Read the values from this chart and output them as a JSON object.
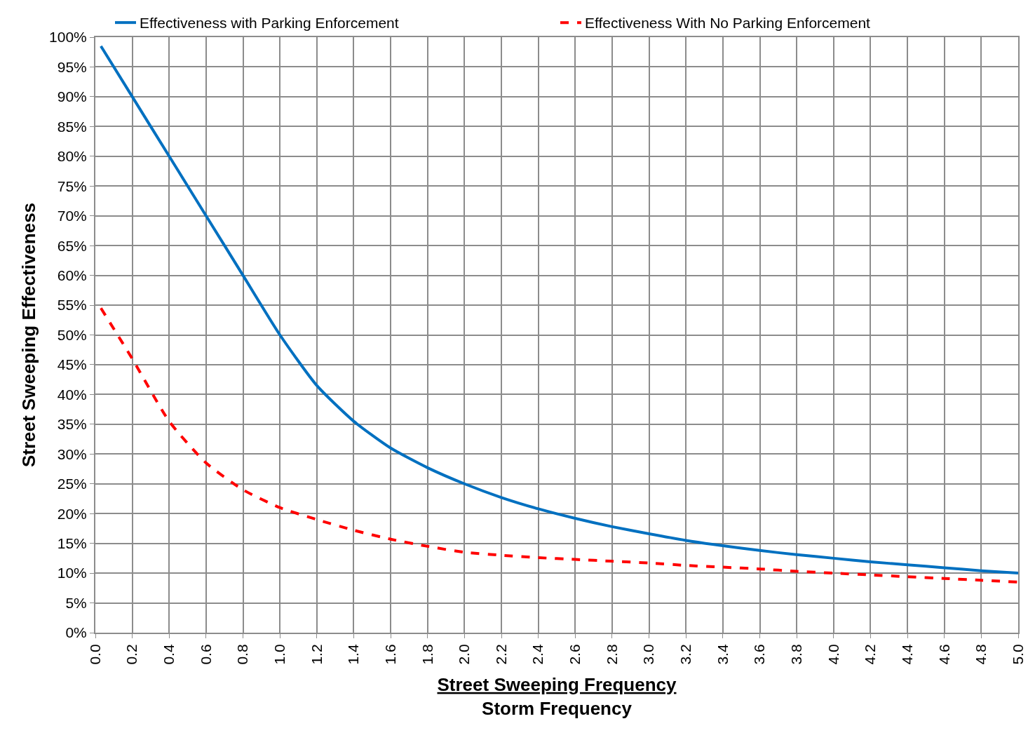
{
  "chart_data": {
    "type": "line",
    "xlabel": "Street Sweeping Frequency\nStorm Frequency",
    "ylabel": "Street Sweeping Effectiveness",
    "x": [
      0.03,
      0.2,
      0.4,
      0.6,
      0.8,
      1.0,
      1.2,
      1.4,
      1.6,
      1.8,
      2.0,
      2.2,
      2.4,
      2.6,
      2.8,
      3.0,
      3.2,
      3.4,
      3.6,
      3.8,
      4.0,
      4.2,
      4.4,
      4.6,
      4.8,
      5.0
    ],
    "series": [
      {
        "name": "Effectiveness with Parking Enforcement",
        "color": "#0070c0",
        "line_style": "solid",
        "values": [
          98.5,
          90,
          80,
          70,
          60,
          50,
          41.5,
          35.5,
          31,
          27.7,
          25,
          22.7,
          20.8,
          19.2,
          17.8,
          16.6,
          15.5,
          14.6,
          13.8,
          13.1,
          12.5,
          11.9,
          11.4,
          10.9,
          10.4,
          10
        ]
      },
      {
        "name": "Effectiveness With No Parking Enforcement",
        "color": "#ff0000",
        "line_style": "dashed",
        "values": [
          54.5,
          46,
          35.5,
          28.5,
          24,
          21,
          19,
          17.2,
          15.7,
          14.5,
          13.5,
          13,
          12.6,
          12.3,
          12,
          11.7,
          11.3,
          11,
          10.7,
          10.3,
          10,
          9.7,
          9.4,
          9.1,
          8.8,
          8.5
        ]
      }
    ],
    "xlim": [
      0,
      5
    ],
    "xticks": [
      {
        "value": 0,
        "label": "0.0"
      },
      {
        "value": 0.2,
        "label": "0.2"
      },
      {
        "value": 0.4,
        "label": "0.4"
      },
      {
        "value": 0.6,
        "label": "0.6"
      },
      {
        "value": 0.8,
        "label": "0.8"
      },
      {
        "value": 1,
        "label": "1.0"
      },
      {
        "value": 1.2,
        "label": "1.2"
      },
      {
        "value": 1.4,
        "label": "1.4"
      },
      {
        "value": 1.6,
        "label": "1.6"
      },
      {
        "value": 1.8,
        "label": "1.8"
      },
      {
        "value": 2,
        "label": "2.0"
      },
      {
        "value": 2.2,
        "label": "2.2"
      },
      {
        "value": 2.4,
        "label": "2.4"
      },
      {
        "value": 2.6,
        "label": "2.6"
      },
      {
        "value": 2.8,
        "label": "2.8"
      },
      {
        "value": 3,
        "label": "3.0"
      },
      {
        "value": 3.2,
        "label": "3.2"
      },
      {
        "value": 3.4,
        "label": "3.4"
      },
      {
        "value": 3.6,
        "label": "3.6"
      },
      {
        "value": 3.8,
        "label": "3.8"
      },
      {
        "value": 4,
        "label": "4.0"
      },
      {
        "value": 4.2,
        "label": "4.2"
      },
      {
        "value": 4.4,
        "label": "4.4"
      },
      {
        "value": 4.6,
        "label": "4.6"
      },
      {
        "value": 4.8,
        "label": "4.8"
      },
      {
        "value": 5,
        "label": "5.0"
      }
    ],
    "ylim": [
      0,
      100
    ],
    "yticks": [
      {
        "value": 0,
        "label": "0%"
      },
      {
        "value": 5,
        "label": "5%"
      },
      {
        "value": 10,
        "label": "10%"
      },
      {
        "value": 15,
        "label": "15%"
      },
      {
        "value": 20,
        "label": "20%"
      },
      {
        "value": 25,
        "label": "25%"
      },
      {
        "value": 30,
        "label": "30%"
      },
      {
        "value": 35,
        "label": "35%"
      },
      {
        "value": 40,
        "label": "40%"
      },
      {
        "value": 45,
        "label": "45%"
      },
      {
        "value": 50,
        "label": "50%"
      },
      {
        "value": 55,
        "label": "55%"
      },
      {
        "value": 60,
        "label": "60%"
      },
      {
        "value": 65,
        "label": "65%"
      },
      {
        "value": 70,
        "label": "70%"
      },
      {
        "value": 75,
        "label": "75%"
      },
      {
        "value": 80,
        "label": "80%"
      },
      {
        "value": 85,
        "label": "85%"
      },
      {
        "value": 90,
        "label": "90%"
      },
      {
        "value": 95,
        "label": "95%"
      },
      {
        "value": 100,
        "label": "100%"
      }
    ],
    "grid": true,
    "legend": "top",
    "marker": "none"
  }
}
